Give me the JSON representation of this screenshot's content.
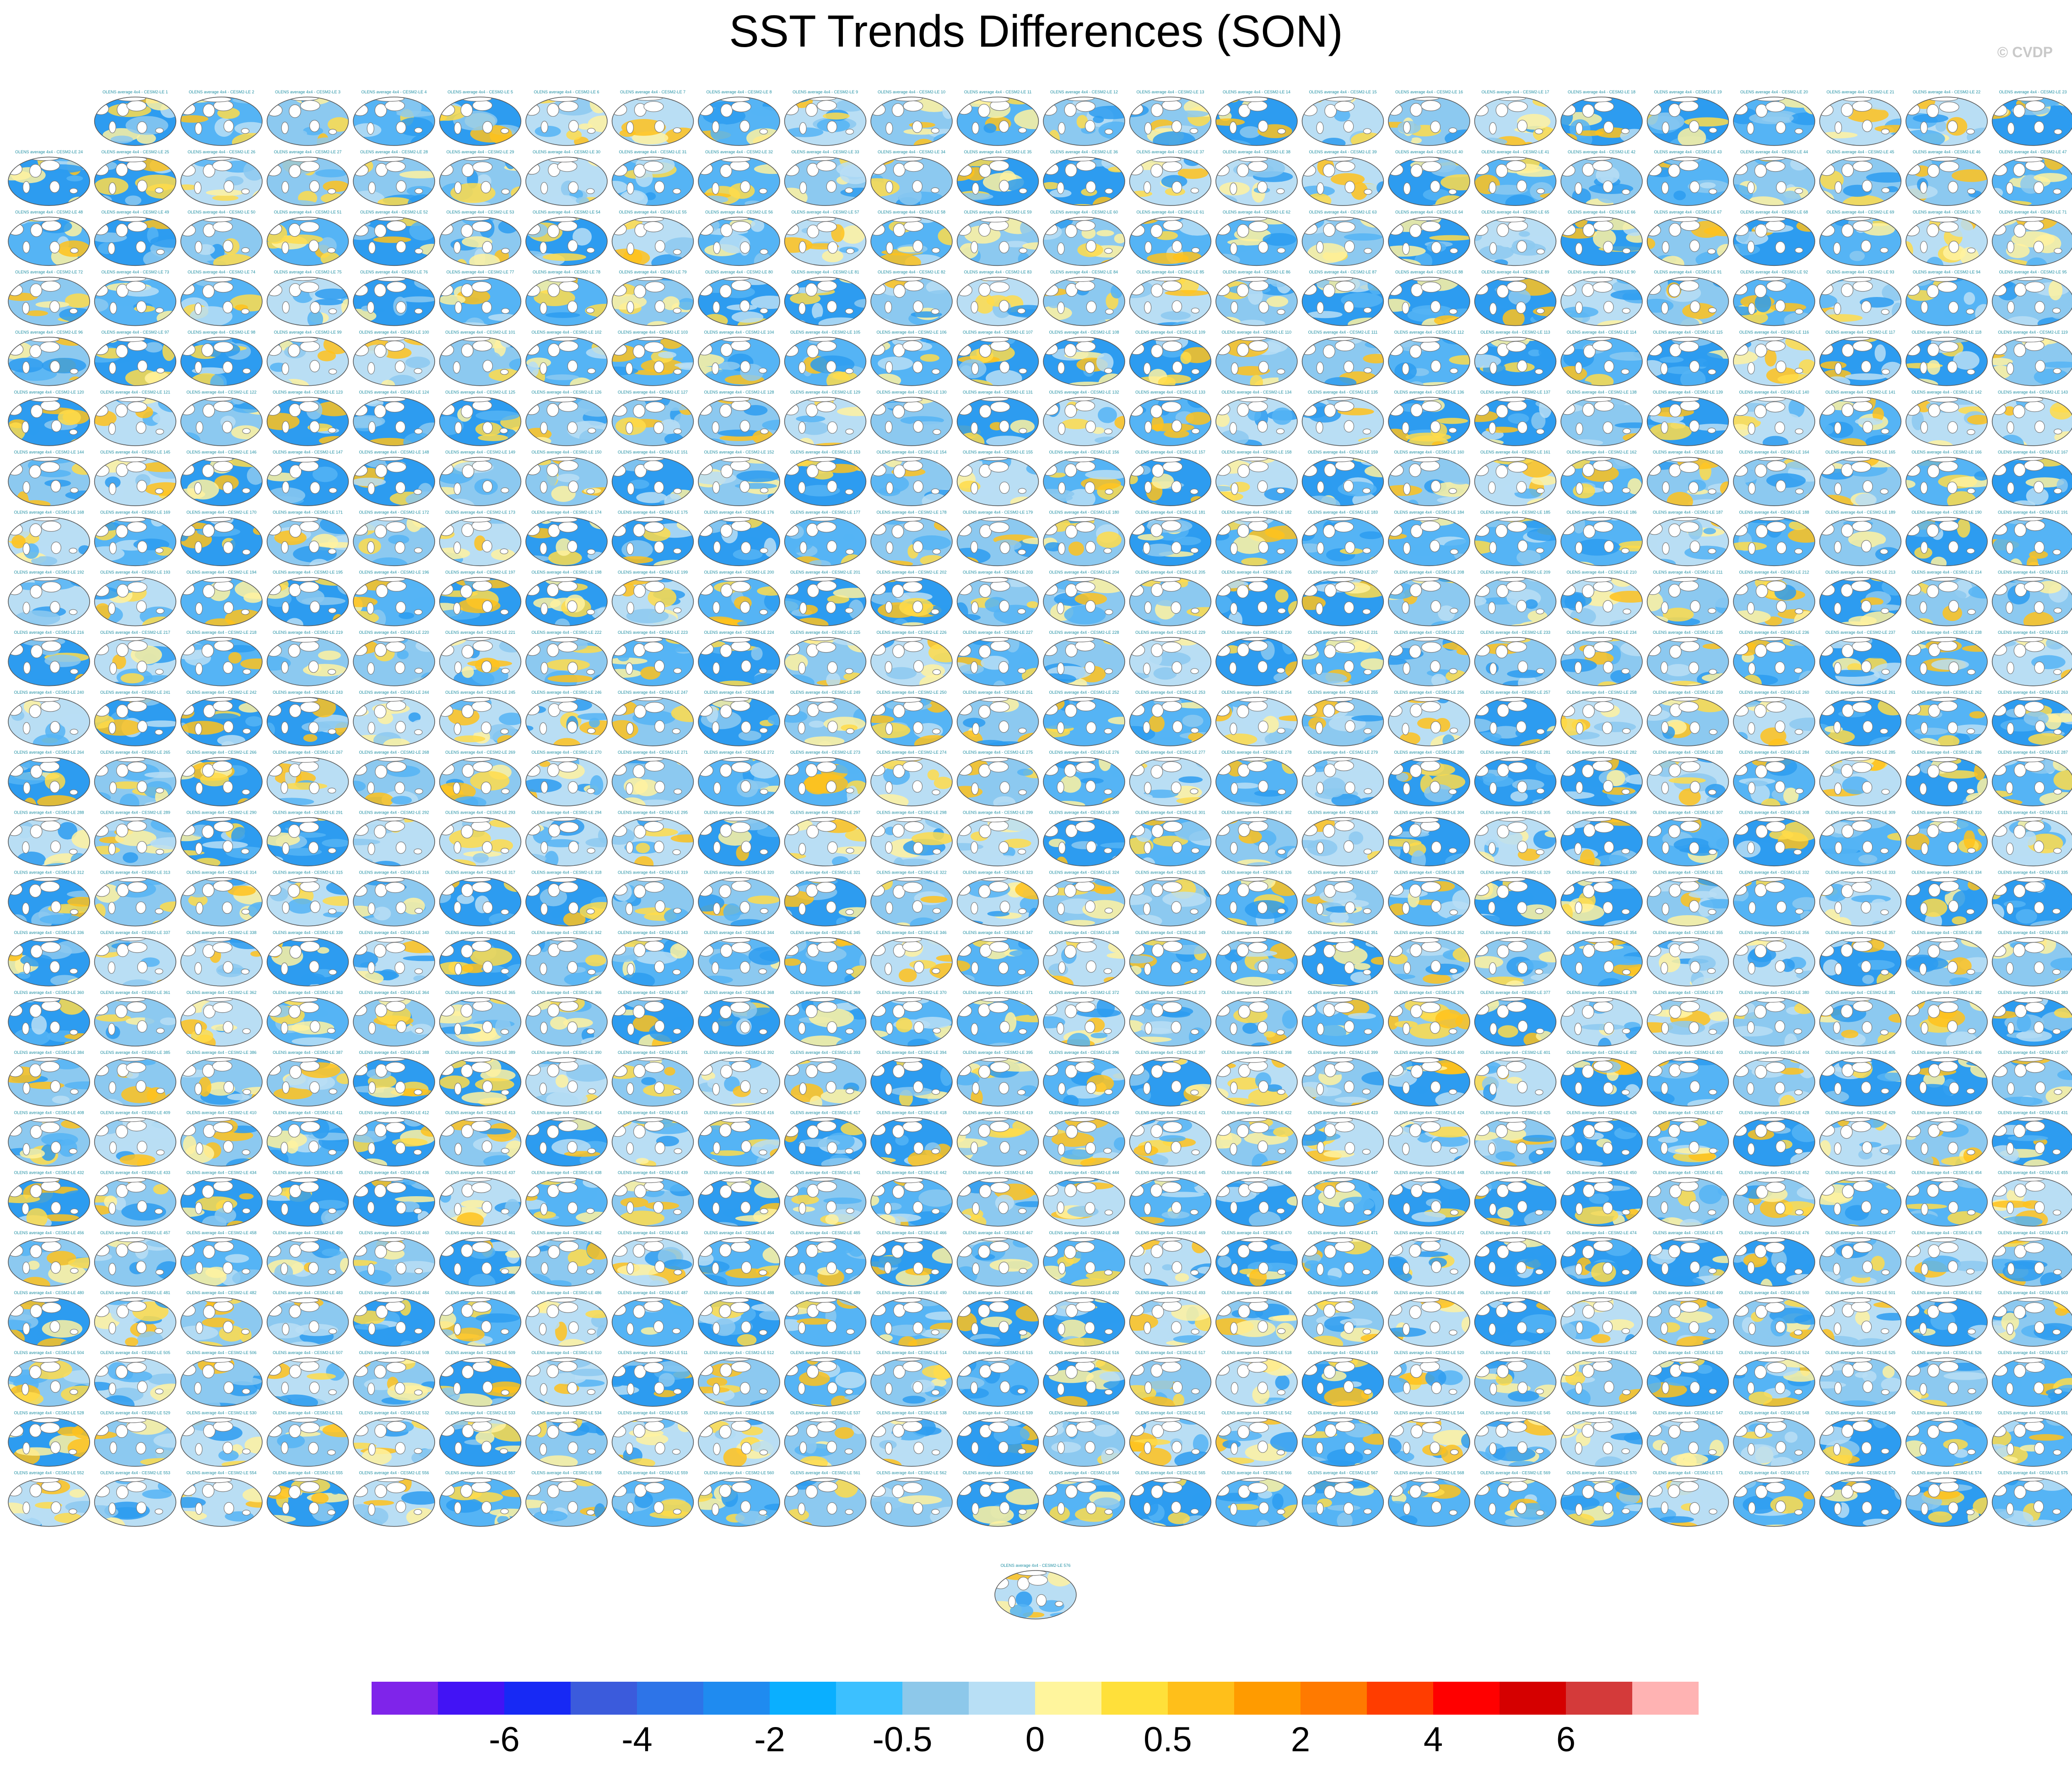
{
  "title": "SST Trends Differences (SON)",
  "credit": "© CVDP",
  "colors": {
    "land": "#ffffff",
    "coast": "#7a7a7a",
    "panel_label": "#1f8fa3"
  },
  "chart_data": {
    "type": "heatmap",
    "description_of_layout": "small-multiples",
    "panel_grid": {
      "rows": 24,
      "cols": 24,
      "panels_in_first_row": 23,
      "extra_panels_last": 1
    },
    "panel_label": "OLENS average 4x4 - CESM2-LE",
    "colorbar": {
      "colors": [
        "#7f24ea",
        "#4213f5",
        "#1729f5",
        "#3b5bdc",
        "#2d74e8",
        "#1f8bf0",
        "#0aafff",
        "#3cc0ff",
        "#8dc8ea",
        "#b8dff5",
        "#fff59d",
        "#ffe03a",
        "#ffbf1a",
        "#ff9b00",
        "#ff7a00",
        "#ff3d00",
        "#ff0000",
        "#d50000",
        "#d43a3a",
        "#ffb3b3"
      ],
      "tick_labels": [
        "-6",
        "-4",
        "-2",
        "-0.5",
        "0",
        "0.5",
        "2",
        "4",
        "6"
      ]
    }
  }
}
